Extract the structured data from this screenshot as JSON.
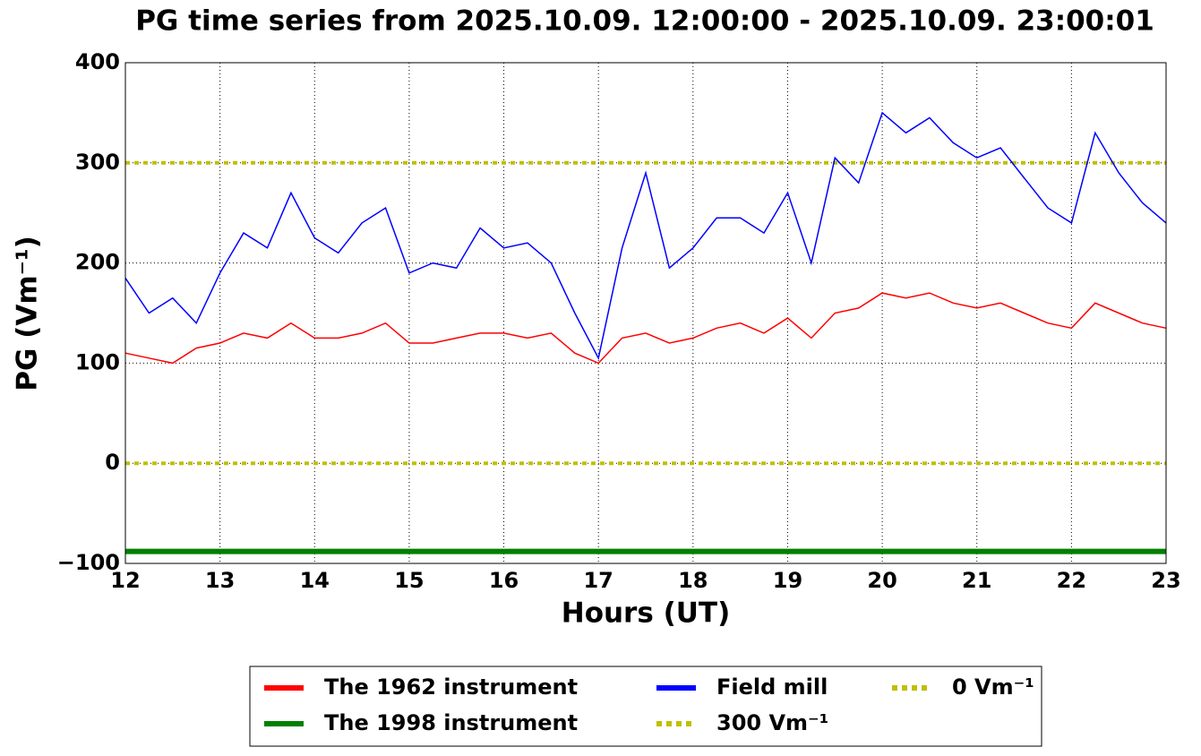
{
  "chart_data": {
    "type": "line",
    "title": "PG time series from 2025.10.09. 12:00:00 - 2025.10.09. 23:00:01",
    "xlabel": "Hours (UT)",
    "ylabel": "PG (Vm⁻¹)",
    "x": [
      12,
      12.25,
      12.5,
      12.75,
      13,
      13.25,
      13.5,
      13.75,
      14,
      14.25,
      14.5,
      14.75,
      15,
      15.25,
      15.5,
      15.75,
      16,
      16.25,
      16.5,
      16.75,
      17,
      17.25,
      17.5,
      17.75,
      18,
      18.25,
      18.5,
      18.75,
      19,
      19.25,
      19.5,
      19.75,
      20,
      20.25,
      20.5,
      20.75,
      21,
      21.25,
      21.5,
      21.75,
      22,
      22.25,
      22.5,
      22.75,
      23
    ],
    "series": [
      {
        "name": "The 1962 instrument",
        "color": "#ff0000",
        "values": [
          110,
          105,
          100,
          115,
          120,
          130,
          125,
          140,
          125,
          125,
          130,
          140,
          120,
          120,
          125,
          130,
          130,
          125,
          130,
          110,
          100,
          125,
          130,
          120,
          125,
          135,
          140,
          130,
          145,
          125,
          150,
          155,
          170,
          165,
          170,
          160,
          155,
          160,
          150,
          140,
          135,
          160,
          150,
          140,
          135
        ]
      },
      {
        "name": "The 1998 instrument",
        "color": "#008000",
        "values": [
          -88,
          -88,
          -88,
          -88,
          -88,
          -88,
          -88,
          -88,
          -88,
          -88,
          -88,
          -88,
          -88,
          -88,
          -88,
          -88,
          -88,
          -88,
          -88,
          -88,
          -88,
          -88,
          -88,
          -88,
          -88,
          -88,
          -88,
          -88,
          -88,
          -88,
          -88,
          -88,
          -88,
          -88,
          -88,
          -88,
          -88,
          -88,
          -88,
          -88,
          -88,
          -88,
          -88,
          -88,
          -88
        ]
      },
      {
        "name": "Field mill",
        "color": "#0000ff",
        "values": [
          185,
          150,
          165,
          140,
          190,
          230,
          215,
          270,
          225,
          210,
          240,
          255,
          190,
          200,
          195,
          235,
          215,
          220,
          200,
          150,
          105,
          215,
          290,
          195,
          215,
          245,
          245,
          230,
          270,
          200,
          305,
          280,
          350,
          330,
          345,
          320,
          305,
          315,
          285,
          255,
          240,
          330,
          290,
          260,
          240
        ]
      }
    ],
    "hlines": [
      {
        "name": "300 Vm⁻¹",
        "value": 300,
        "color": "#bfbf00"
      },
      {
        "name": "0 Vm⁻¹",
        "value": 0,
        "color": "#bfbf00"
      }
    ],
    "xlim": [
      12,
      23
    ],
    "ylim": [
      -100,
      400
    ],
    "xticks": [
      12,
      13,
      14,
      15,
      16,
      17,
      18,
      19,
      20,
      21,
      22,
      23
    ],
    "yticks": [
      {
        "value": -100,
        "label": "−100"
      },
      0,
      100,
      200,
      300,
      400
    ],
    "grid": true,
    "legend": "below"
  }
}
